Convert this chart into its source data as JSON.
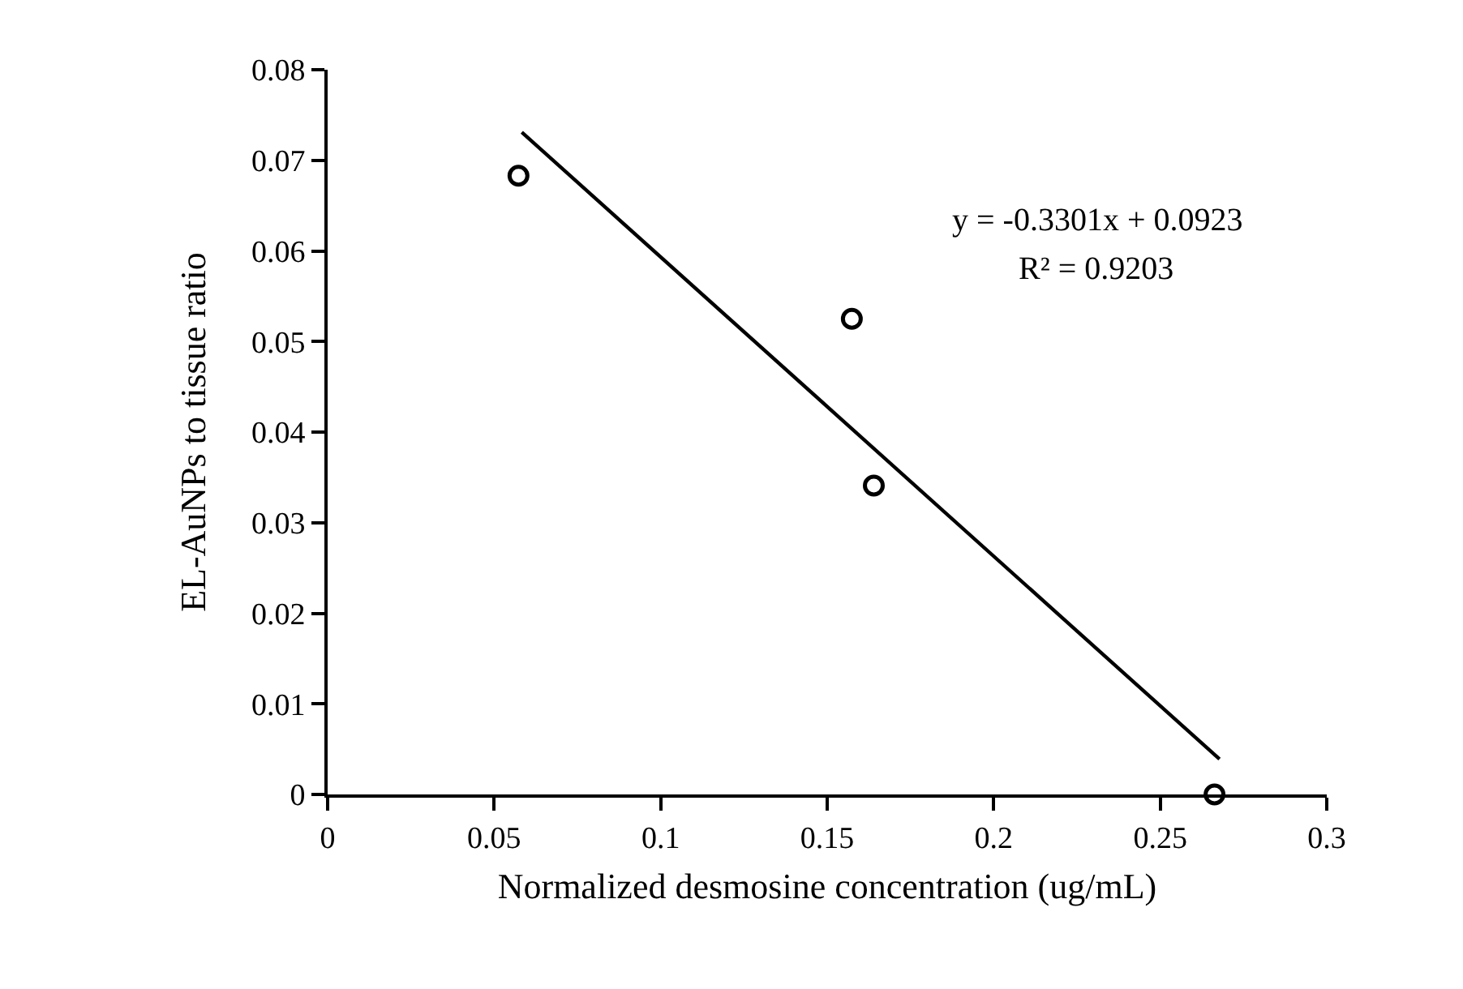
{
  "chart_data": {
    "type": "scatter",
    "xlabel": "Normalized desmosine concentration (ug/mL)",
    "ylabel": "EL-AuNPs to tissue ratio",
    "annotations": [
      "y = -0.3301x + 0.0923",
      "R² = 0.9203"
    ],
    "series": [
      {
        "color": "#000000",
        "marker": "circle",
        "x": [
          0.0573,
          0.1574,
          0.164,
          0.2663
        ],
        "values": [
          0.0683,
          0.0525,
          0.0341,
          0
        ]
      },
      {
        "type": "line",
        "color": "#000000",
        "marker": "none",
        "line_style": "solid",
        "x": [
          0.0583,
          0.2678
        ],
        "values": [
          0.0731,
          0.0039
        ]
      }
    ],
    "xlim": [
      0,
      0.3
    ],
    "xticks": [
      0,
      0.05,
      0.1,
      0.15,
      0.2,
      0.25,
      0.3
    ],
    "ylim": [
      0,
      0.08
    ],
    "yticks": [
      0,
      0.01,
      0.02,
      0.03,
      0.04,
      0.05,
      0.06,
      0.07,
      0.08
    ]
  }
}
